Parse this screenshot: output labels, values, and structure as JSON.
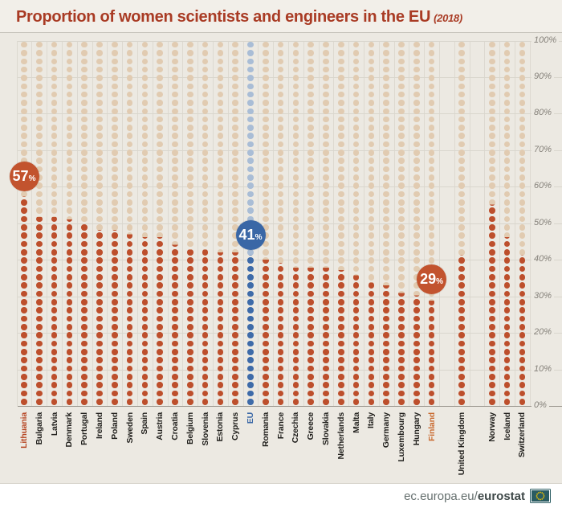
{
  "title": {
    "text": "Proportion of women scientists and engineers in the EU",
    "suffix": "(2018)"
  },
  "footer": {
    "url_regular": "ec.europa.eu/",
    "url_bold": "eurostat",
    "icon": "eu-flag-icon"
  },
  "axis_ticks": [
    "100%",
    "90%",
    "80%",
    "70%",
    "60%",
    "50%",
    "40%",
    "30%",
    "20%",
    "10%",
    "0%"
  ],
  "colors": {
    "title": "#A93B24",
    "header_bg": "#F2EFE9",
    "chart_bg": "#ECE9E2",
    "footer_bg": "#FFFFFF",
    "dot_red": "#BD4F2C",
    "dot_beige": "#E1CBB1",
    "dot_eu_blue": "#3E6BA9",
    "dot_eu_light": "#A9BDD6",
    "badge_red": "#C2532E",
    "badge_blue": "#3A67A6",
    "label_default": "#201F1C",
    "gridline": "#D9D6CD",
    "baseline": "#97938A",
    "tick_text": "#85817A"
  },
  "chart_data": {
    "type": "dot-column",
    "title": "Proportion of women scientists and engineers in the EU (2018)",
    "unit": "%",
    "ylim": [
      0,
      100
    ],
    "grid_step": 10,
    "legend_position": "none",
    "annotations": [
      {
        "country": "Lithuania",
        "text": "57%"
      },
      {
        "country": "EU",
        "text": "41%"
      },
      {
        "country": "Finland",
        "text": "29%"
      }
    ],
    "series": [
      {
        "name": "Lithuania",
        "value": 57,
        "badge": true,
        "label_color": "#B5421F"
      },
      {
        "name": "Bulgaria",
        "value": 52
      },
      {
        "name": "Latvia",
        "value": 52
      },
      {
        "name": "Denmark",
        "value": 51
      },
      {
        "name": "Portugal",
        "value": 50
      },
      {
        "name": "Ireland",
        "value": 48
      },
      {
        "name": "Poland",
        "value": 48
      },
      {
        "name": "Sweden",
        "value": 47
      },
      {
        "name": "Spain",
        "value": 46
      },
      {
        "name": "Austria",
        "value": 46
      },
      {
        "name": "Croatia",
        "value": 44
      },
      {
        "name": "Belgium",
        "value": 43
      },
      {
        "name": "Slovenia",
        "value": 43
      },
      {
        "name": "Estonia",
        "value": 42
      },
      {
        "name": "Cyprus",
        "value": 42
      },
      {
        "name": "EU",
        "value": 41,
        "role": "eu",
        "badge": true,
        "label_color": "#3C69A7"
      },
      {
        "name": "Romania",
        "value": 40
      },
      {
        "name": "France",
        "value": 39
      },
      {
        "name": "Czechia",
        "value": 38
      },
      {
        "name": "Greece",
        "value": 38
      },
      {
        "name": "Slovakia",
        "value": 38
      },
      {
        "name": "Netherlands",
        "value": 37
      },
      {
        "name": "Malta",
        "value": 36
      },
      {
        "name": "Italy",
        "value": 34
      },
      {
        "name": "Germany",
        "value": 33
      },
      {
        "name": "Luxembourg",
        "value": 31
      },
      {
        "name": "Hungary",
        "value": 30
      },
      {
        "name": "Finland",
        "value": 29,
        "badge": true,
        "label_color": "#C96A2F"
      },
      {
        "name": "United Kingdom",
        "value": 41,
        "gap_before": true
      },
      {
        "name": "Norway",
        "value": 55,
        "gap_before": true
      },
      {
        "name": "Iceland",
        "value": 46
      },
      {
        "name": "Switzerland",
        "value": 41
      }
    ]
  }
}
